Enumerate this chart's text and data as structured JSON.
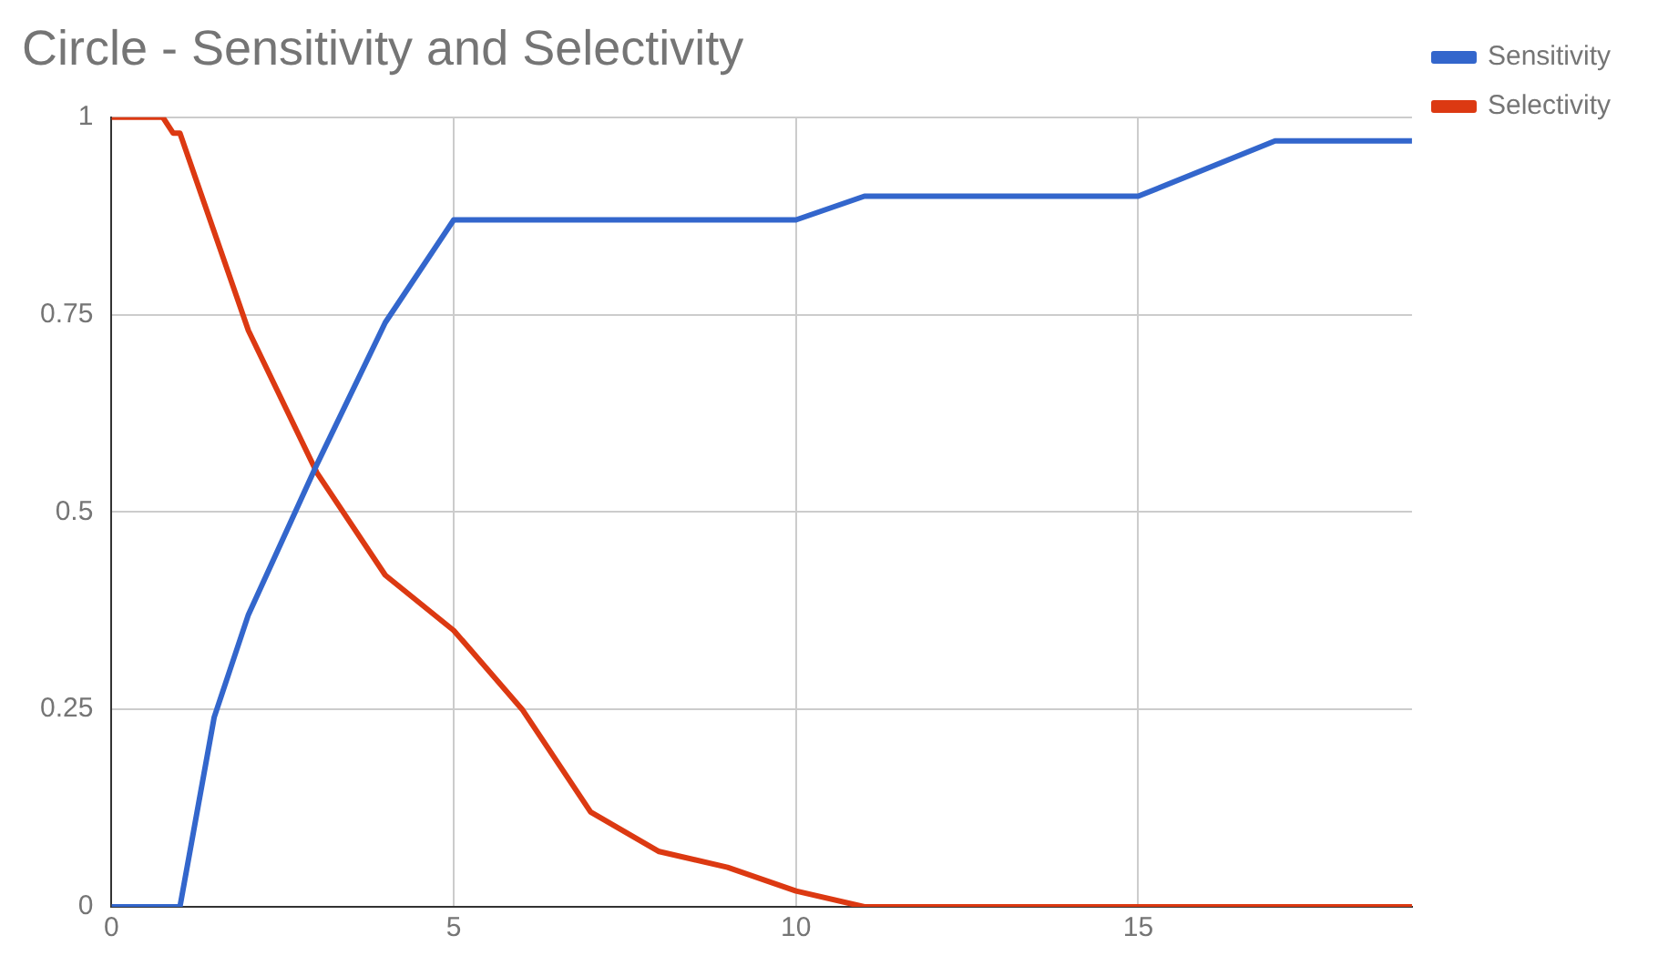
{
  "chart_data": {
    "type": "line",
    "title": "Circle - Sensitivity and Selectivity",
    "xlim": [
      0,
      19
    ],
    "xticks": [
      0,
      5,
      10,
      15
    ],
    "ylim": [
      0,
      1
    ],
    "yticks": [
      0,
      0.25,
      0.5,
      0.75,
      1
    ],
    "grid": true,
    "legend": "top right",
    "marker": "none",
    "line_style": "solid",
    "series": [
      {
        "name": "Sensitivity",
        "color": "#3366cc",
        "x": [
          0,
          1,
          1.5,
          2,
          3,
          4,
          5,
          10,
          11,
          15,
          17,
          19
        ],
        "values": [
          0,
          0,
          0.24,
          0.37,
          0.56,
          0.74,
          0.87,
          0.87,
          0.9,
          0.9,
          0.97,
          0.97
        ]
      },
      {
        "name": "Selectivity",
        "color": "#dc3912",
        "x": [
          0,
          0.75,
          0.9,
          1,
          2,
          3,
          4,
          5,
          6,
          7,
          8,
          9,
          10,
          11,
          19
        ],
        "values": [
          1,
          1,
          0.98,
          0.98,
          0.73,
          0.55,
          0.42,
          0.35,
          0.25,
          0.12,
          0.07,
          0.05,
          0.02,
          0,
          0
        ]
      }
    ]
  }
}
